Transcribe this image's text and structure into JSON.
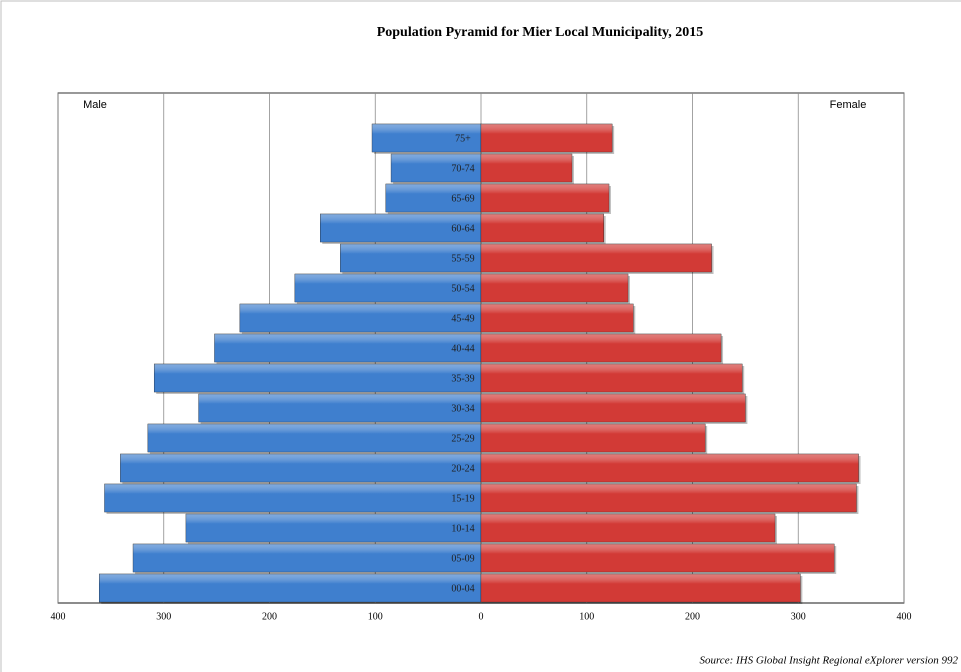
{
  "chart_data": {
    "type": "pyramid",
    "title": "Population Pyramid for Mier Local Municipality, 2015",
    "source": "Source: IHS Global Insight Regional eXplorer version 992",
    "categories": [
      "00-04",
      "05-09",
      "10-14",
      "15-19",
      "20-24",
      "25-29",
      "30-34",
      "35-39",
      "40-44",
      "45-49",
      "50-54",
      "55-59",
      "60-64",
      "65-69",
      "70-74",
      "75+"
    ],
    "series": [
      {
        "name": "Male",
        "color": "#3f7fce",
        "values": [
          361,
          329,
          279,
          356,
          341,
          315,
          267,
          309,
          252,
          228,
          176,
          133,
          152,
          90,
          85,
          103
        ]
      },
      {
        "name": "Female",
        "color": "#d23a36",
        "values": [
          302,
          334,
          278,
          355,
          357,
          212,
          250,
          247,
          227,
          144,
          139,
          218,
          116,
          121,
          86,
          124
        ]
      }
    ],
    "xlim": [
      -400,
      400
    ],
    "xticks": [
      {
        "value": -400,
        "label": "400"
      },
      {
        "value": -300,
        "label": "300"
      },
      {
        "value": -200,
        "label": "200"
      },
      {
        "value": -100,
        "label": "100"
      },
      0,
      100,
      200,
      300,
      400
    ],
    "grid": true
  }
}
